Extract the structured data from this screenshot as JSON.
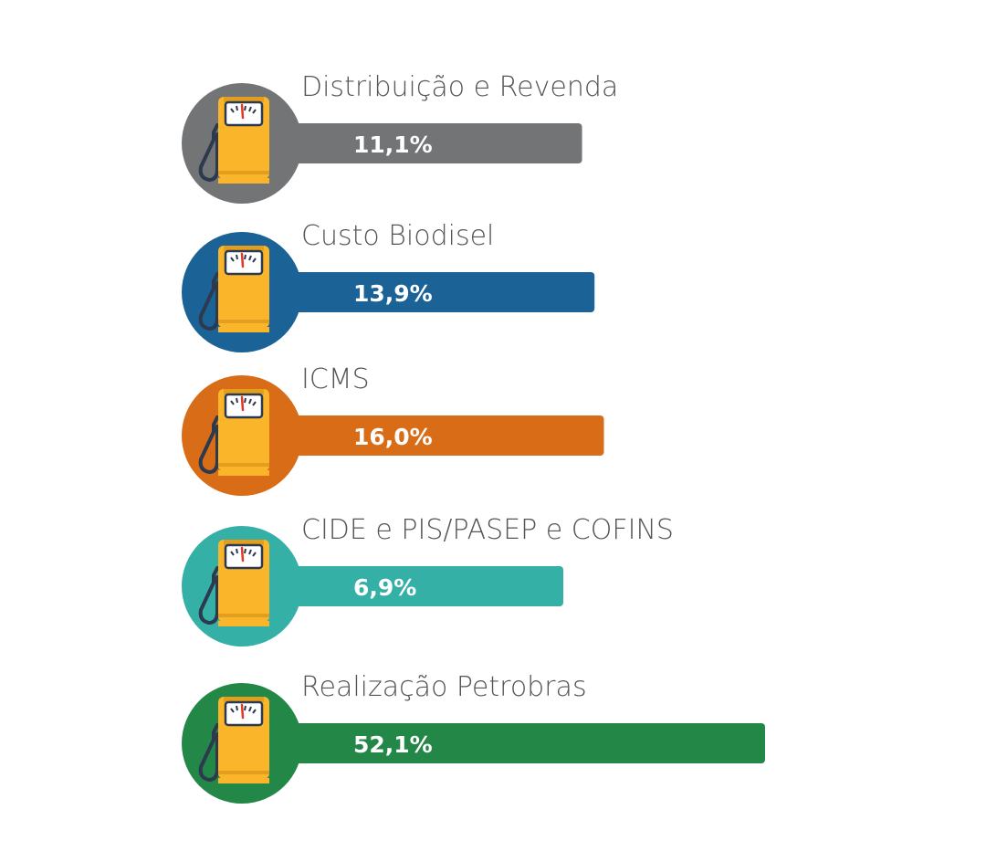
{
  "chart_data": {
    "type": "bar",
    "orientation": "horizontal",
    "categories": [
      "Distribuição e Revenda",
      "Custo Biodisel",
      "ICMS",
      "CIDE e PIS/PASEP e COFINS",
      "Realização Petrobras"
    ],
    "values": [
      11.1,
      13.9,
      16.0,
      6.9,
      52.1
    ],
    "value_labels": [
      "11,1%",
      "13,9%",
      "16,0%",
      "6,9%",
      "52,1%"
    ],
    "colors": [
      "#737476",
      "#1b6296",
      "#d96d17",
      "#35b0a7",
      "#238748"
    ],
    "icon": "fuel-pump-icon",
    "icon_colors": {
      "body": "#fbb52b",
      "stripe": "#e39e1d",
      "gauge": "#ffffff",
      "hose": "#2b3a4f",
      "needle": "#e0392b"
    },
    "title": "",
    "xlabel": "",
    "ylabel": "",
    "grid": false,
    "legend": "none"
  }
}
